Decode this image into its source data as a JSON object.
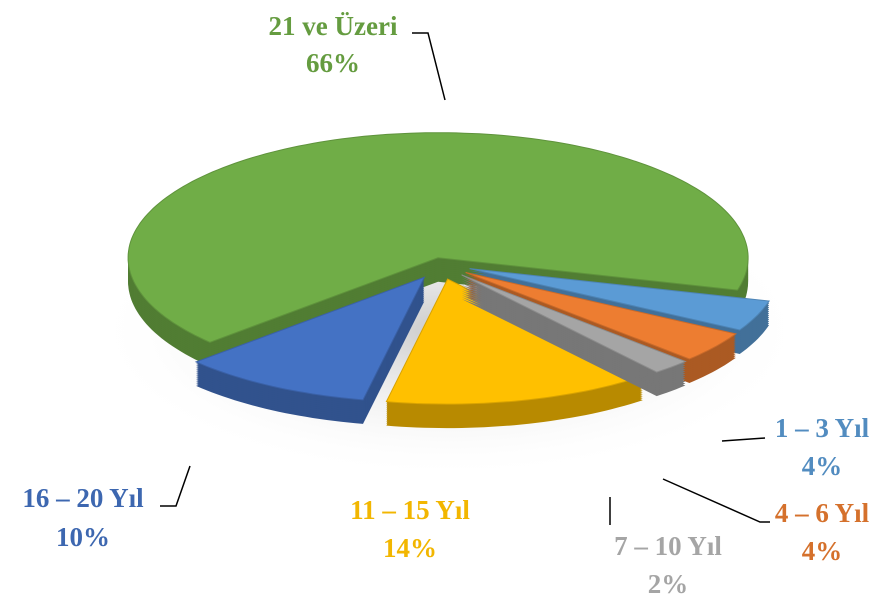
{
  "chart_data": {
    "type": "pie",
    "categories": [
      "1 – 3 Yıl",
      "4 – 6 Yıl",
      "7 – 10 Yıl",
      "11 – 15 Yıl",
      "16 – 20 Yıl",
      "21 ve Üzeri"
    ],
    "values": [
      4,
      4,
      2,
      14,
      10,
      66
    ],
    "value_labels": [
      "4%",
      "4%",
      "2%",
      "14%",
      "10%",
      "66%"
    ],
    "colors": [
      "#5b9bd5",
      "#ed7d31",
      "#a5a5a5",
      "#ffc000",
      "#4472c4",
      "#70ad47"
    ]
  }
}
